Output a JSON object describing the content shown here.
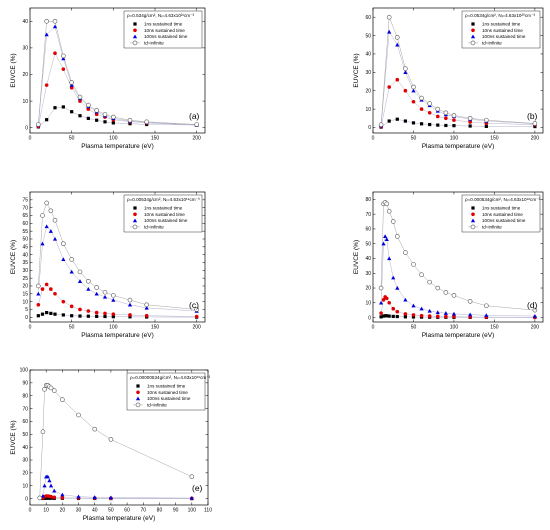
{
  "chart_data": [
    {
      "type": "line",
      "panel": "(a)",
      "condition": "ρ=0.534g/cm², Nᵢ=4.63x10²¹cm⁻³",
      "xlabel": "Plasma temperature (eV)",
      "ylabel": "EUVCE (%)",
      "xlim": [
        0,
        210
      ],
      "ylim": [
        -2,
        45
      ],
      "xticks": [
        0,
        50,
        100,
        150,
        200
      ],
      "yticks": [
        0,
        10,
        20,
        30,
        40
      ],
      "legend_position": "top-right",
      "series": [
        {
          "name": "1ns sustained time",
          "marker": "square",
          "color": "#000000",
          "x": [
            10,
            20,
            30,
            40,
            50,
            60,
            70,
            80,
            90,
            100,
            120,
            140,
            200
          ],
          "y": [
            0.3,
            3,
            7.5,
            7.8,
            6,
            4.5,
            3.5,
            2.8,
            2.2,
            1.8,
            1.5,
            1.2,
            1
          ]
        },
        {
          "name": "10ns sustained time",
          "marker": "circle",
          "color": "#e00000",
          "x": [
            10,
            20,
            30,
            40,
            50,
            60,
            70,
            80,
            90,
            100,
            120,
            140,
            200
          ],
          "y": [
            0.5,
            16,
            28,
            22,
            15,
            10,
            7,
            5,
            4,
            3,
            2.3,
            1.8,
            1
          ]
        },
        {
          "name": "100ns sustained time",
          "marker": "triangle",
          "color": "#0000dd",
          "x": [
            10,
            20,
            30,
            40,
            50,
            60,
            70,
            80,
            90,
            100,
            120,
            140,
            200
          ],
          "y": [
            1,
            35,
            38,
            26,
            16,
            11,
            8,
            6,
            4.5,
            3.5,
            2.5,
            2,
            1
          ]
        },
        {
          "name": "td=infinite",
          "marker": "open-circle",
          "color": "#555555",
          "x": [
            10,
            20,
            30,
            40,
            50,
            60,
            70,
            80,
            90,
            100,
            120,
            140,
            200
          ],
          "y": [
            1.2,
            40,
            40,
            27,
            17,
            11.5,
            8.5,
            6.5,
            5,
            4,
            2.8,
            2.2,
            1.2
          ]
        }
      ]
    },
    {
      "type": "line",
      "panel": "(b)",
      "condition": "ρ=0.0534g/cm², Nᵢ=4.63x10²⁰cm⁻³",
      "xlabel": "Plasma temperature (eV)",
      "ylabel": "EUVCE (%)",
      "xlim": [
        0,
        210
      ],
      "ylim": [
        -3,
        65
      ],
      "xticks": [
        0,
        50,
        100,
        150,
        200
      ],
      "yticks": [
        0,
        10,
        20,
        30,
        40,
        50,
        60
      ],
      "legend_position": "top-right",
      "series": [
        {
          "name": "1ns sustained time",
          "marker": "square",
          "color": "#000000",
          "x": [
            10,
            20,
            30,
            40,
            50,
            60,
            70,
            80,
            90,
            100,
            120,
            140,
            200
          ],
          "y": [
            0.2,
            3.5,
            4.5,
            3.5,
            2.5,
            2,
            1.6,
            1.3,
            1.1,
            1,
            0.8,
            0.6,
            0.5
          ]
        },
        {
          "name": "10ns sustained time",
          "marker": "circle",
          "color": "#e00000",
          "x": [
            10,
            20,
            30,
            40,
            50,
            60,
            70,
            80,
            90,
            100,
            120,
            140,
            200
          ],
          "y": [
            0.5,
            22,
            26,
            20,
            14,
            10,
            8,
            6,
            5,
            4,
            3,
            2.3,
            1.5
          ]
        },
        {
          "name": "100ns sustained time",
          "marker": "triangle",
          "color": "#0000dd",
          "x": [
            10,
            20,
            30,
            40,
            50,
            60,
            70,
            80,
            90,
            100,
            120,
            140,
            200
          ],
          "y": [
            1,
            52,
            45,
            30,
            20,
            15,
            12,
            9,
            7,
            6,
            4.5,
            3.5,
            2
          ]
        },
        {
          "name": "td=infinite",
          "marker": "open-circle",
          "color": "#555555",
          "x": [
            10,
            20,
            30,
            40,
            50,
            60,
            70,
            80,
            90,
            100,
            120,
            140,
            200
          ],
          "y": [
            1.5,
            60,
            49,
            32,
            22,
            16,
            13,
            10,
            8,
            6.5,
            5,
            4,
            2.2
          ]
        }
      ]
    },
    {
      "type": "line",
      "panel": "(c)",
      "condition": "ρ=0.00534g/cm², Nᵢ=4.63x10¹⁹cm⁻³",
      "xlabel": "Plasma temperature (eV)",
      "ylabel": "EUVCE (%)",
      "xlim": [
        0,
        210
      ],
      "ylim": [
        -3,
        80
      ],
      "xticks": [
        0,
        50,
        100,
        150,
        200
      ],
      "yticks": [
        0,
        5,
        10,
        15,
        20,
        25,
        30,
        35,
        40,
        45,
        50,
        55,
        60,
        65,
        70,
        75
      ],
      "legend_position": "top-right",
      "series": [
        {
          "name": "1ns sustained time",
          "marker": "square",
          "color": "#000000",
          "x": [
            10,
            15,
            20,
            25,
            30,
            40,
            50,
            60,
            70,
            80,
            90,
            100,
            120,
            140,
            200
          ],
          "y": [
            1,
            2,
            3,
            2.5,
            2,
            1.5,
            1,
            0.8,
            0.7,
            0.6,
            0.5,
            0.4,
            0.3,
            0.2,
            0.1
          ]
        },
        {
          "name": "10ns sustained time",
          "marker": "circle",
          "color": "#e00000",
          "x": [
            10,
            15,
            20,
            25,
            30,
            40,
            50,
            60,
            70,
            80,
            90,
            100,
            120,
            140,
            200
          ],
          "y": [
            8,
            18,
            21,
            18,
            15,
            10,
            7,
            5,
            4,
            3,
            2.5,
            2,
            1.5,
            1,
            0.5
          ]
        },
        {
          "name": "100ns sustained time",
          "marker": "triangle",
          "color": "#0000dd",
          "x": [
            10,
            15,
            20,
            25,
            30,
            40,
            50,
            60,
            70,
            80,
            90,
            100,
            120,
            140,
            200
          ],
          "y": [
            15,
            47,
            58,
            55,
            50,
            37,
            29,
            23,
            18,
            15,
            13,
            11,
            8,
            6,
            4
          ]
        },
        {
          "name": "td=infinite",
          "marker": "open-circle",
          "color": "#555555",
          "x": [
            10,
            15,
            20,
            25,
            30,
            40,
            50,
            60,
            70,
            80,
            90,
            100,
            120,
            140,
            200
          ],
          "y": [
            20,
            65,
            73,
            68,
            62,
            47,
            37,
            29,
            23,
            19,
            16,
            14,
            11,
            8,
            5
          ]
        }
      ]
    },
    {
      "type": "line",
      "panel": "(d)",
      "condition": "ρ=0.000534g/cm², Nᵢ=4.63x10¹⁸cm⁻³",
      "xlabel": "Plasma temperature (eV)",
      "ylabel": "EUVCE (%)",
      "xlim": [
        0,
        210
      ],
      "ylim": [
        -3,
        85
      ],
      "xticks": [
        0,
        50,
        100,
        150,
        200
      ],
      "yticks": [
        0,
        10,
        20,
        30,
        40,
        50,
        60,
        70,
        80
      ],
      "legend_position": "top-right",
      "series": [
        {
          "name": "1ns sustained time",
          "marker": "square",
          "color": "#000000",
          "x": [
            10,
            13,
            15,
            17,
            20,
            25,
            30,
            40,
            50,
            60,
            70,
            80,
            90,
            100,
            120,
            140,
            200
          ],
          "y": [
            0.5,
            1,
            1.2,
            1.2,
            1,
            0.8,
            0.7,
            0.5,
            0.4,
            0.3,
            0.25,
            0.2,
            0.2,
            0.15,
            0.1,
            0.1,
            0.05
          ]
        },
        {
          "name": "10ns sustained time",
          "marker": "circle",
          "color": "#e00000",
          "x": [
            10,
            13,
            15,
            17,
            20,
            25,
            30,
            40,
            50,
            60,
            70,
            80,
            90,
            100,
            120,
            140,
            200
          ],
          "y": [
            3,
            12,
            14,
            13,
            10,
            6,
            4,
            2.5,
            1.8,
            1.3,
            1,
            0.8,
            0.7,
            0.6,
            0.4,
            0.3,
            0.2
          ]
        },
        {
          "name": "100ns sustained time",
          "marker": "triangle",
          "color": "#0000dd",
          "x": [
            10,
            13,
            15,
            17,
            20,
            25,
            30,
            40,
            50,
            60,
            70,
            80,
            90,
            100,
            120,
            140,
            200
          ],
          "y": [
            10,
            50,
            55,
            53,
            40,
            27,
            20,
            12,
            8,
            6,
            4.5,
            3.5,
            3,
            2.5,
            2,
            1.5,
            1
          ]
        },
        {
          "name": "td=infinite",
          "marker": "open-circle",
          "color": "#555555",
          "x": [
            10,
            13,
            15,
            17,
            20,
            25,
            30,
            40,
            50,
            60,
            70,
            80,
            90,
            100,
            120,
            140,
            200
          ],
          "y": [
            20,
            77,
            78,
            77,
            72,
            65,
            55,
            44,
            36,
            29,
            24,
            20,
            17,
            15,
            11,
            8,
            5
          ]
        }
      ]
    },
    {
      "type": "line",
      "panel": "(e)",
      "condition": "ρ=0.00000534g/cm², Nᵢ=4.63x10¹⁶cm⁻³",
      "xlabel": "Plasma temperature (eV)",
      "ylabel": "EUVCE (%)",
      "xlim": [
        0,
        110
      ],
      "ylim": [
        -5,
        100
      ],
      "xticks": [
        0,
        10,
        20,
        30,
        40,
        50,
        60,
        70,
        80,
        90,
        100,
        110
      ],
      "yticks": [
        0,
        10,
        20,
        30,
        40,
        50,
        60,
        70,
        80,
        90,
        100
      ],
      "legend_position": "top-right",
      "series": [
        {
          "name": "1ns sustained time",
          "marker": "square",
          "color": "#000000",
          "x": [
            8,
            9,
            10,
            11,
            12,
            13,
            15,
            20,
            30,
            40,
            50,
            100
          ],
          "y": [
            0.1,
            0.2,
            0.3,
            0.3,
            0.3,
            0.3,
            0.2,
            0.2,
            0.1,
            0.1,
            0.05,
            0.03
          ]
        },
        {
          "name": "10ns sustained time",
          "marker": "circle",
          "color": "#e00000",
          "x": [
            8,
            9,
            10,
            11,
            12,
            13,
            15,
            20,
            30,
            40,
            50,
            100
          ],
          "y": [
            0.5,
            1.5,
            2,
            2,
            1.8,
            1.5,
            1,
            0.6,
            0.4,
            0.3,
            0.2,
            0.1
          ]
        },
        {
          "name": "100ns sustained time",
          "marker": "triangle",
          "color": "#0000dd",
          "x": [
            8,
            9,
            10,
            11,
            12,
            13,
            15,
            20,
            30,
            40,
            50,
            100
          ],
          "y": [
            2,
            10,
            17,
            17,
            14,
            10,
            6,
            3,
            1.5,
            1,
            0.8,
            0.4
          ]
        },
        {
          "name": "td=infinite",
          "marker": "open-circle",
          "color": "#555555",
          "x": [
            6,
            8,
            9,
            10,
            11,
            12,
            13,
            15,
            20,
            30,
            40,
            50,
            100
          ],
          "y": [
            0.5,
            52,
            85,
            88,
            88,
            87,
            86,
            84,
            77,
            65,
            54,
            46,
            17
          ]
        }
      ]
    }
  ]
}
